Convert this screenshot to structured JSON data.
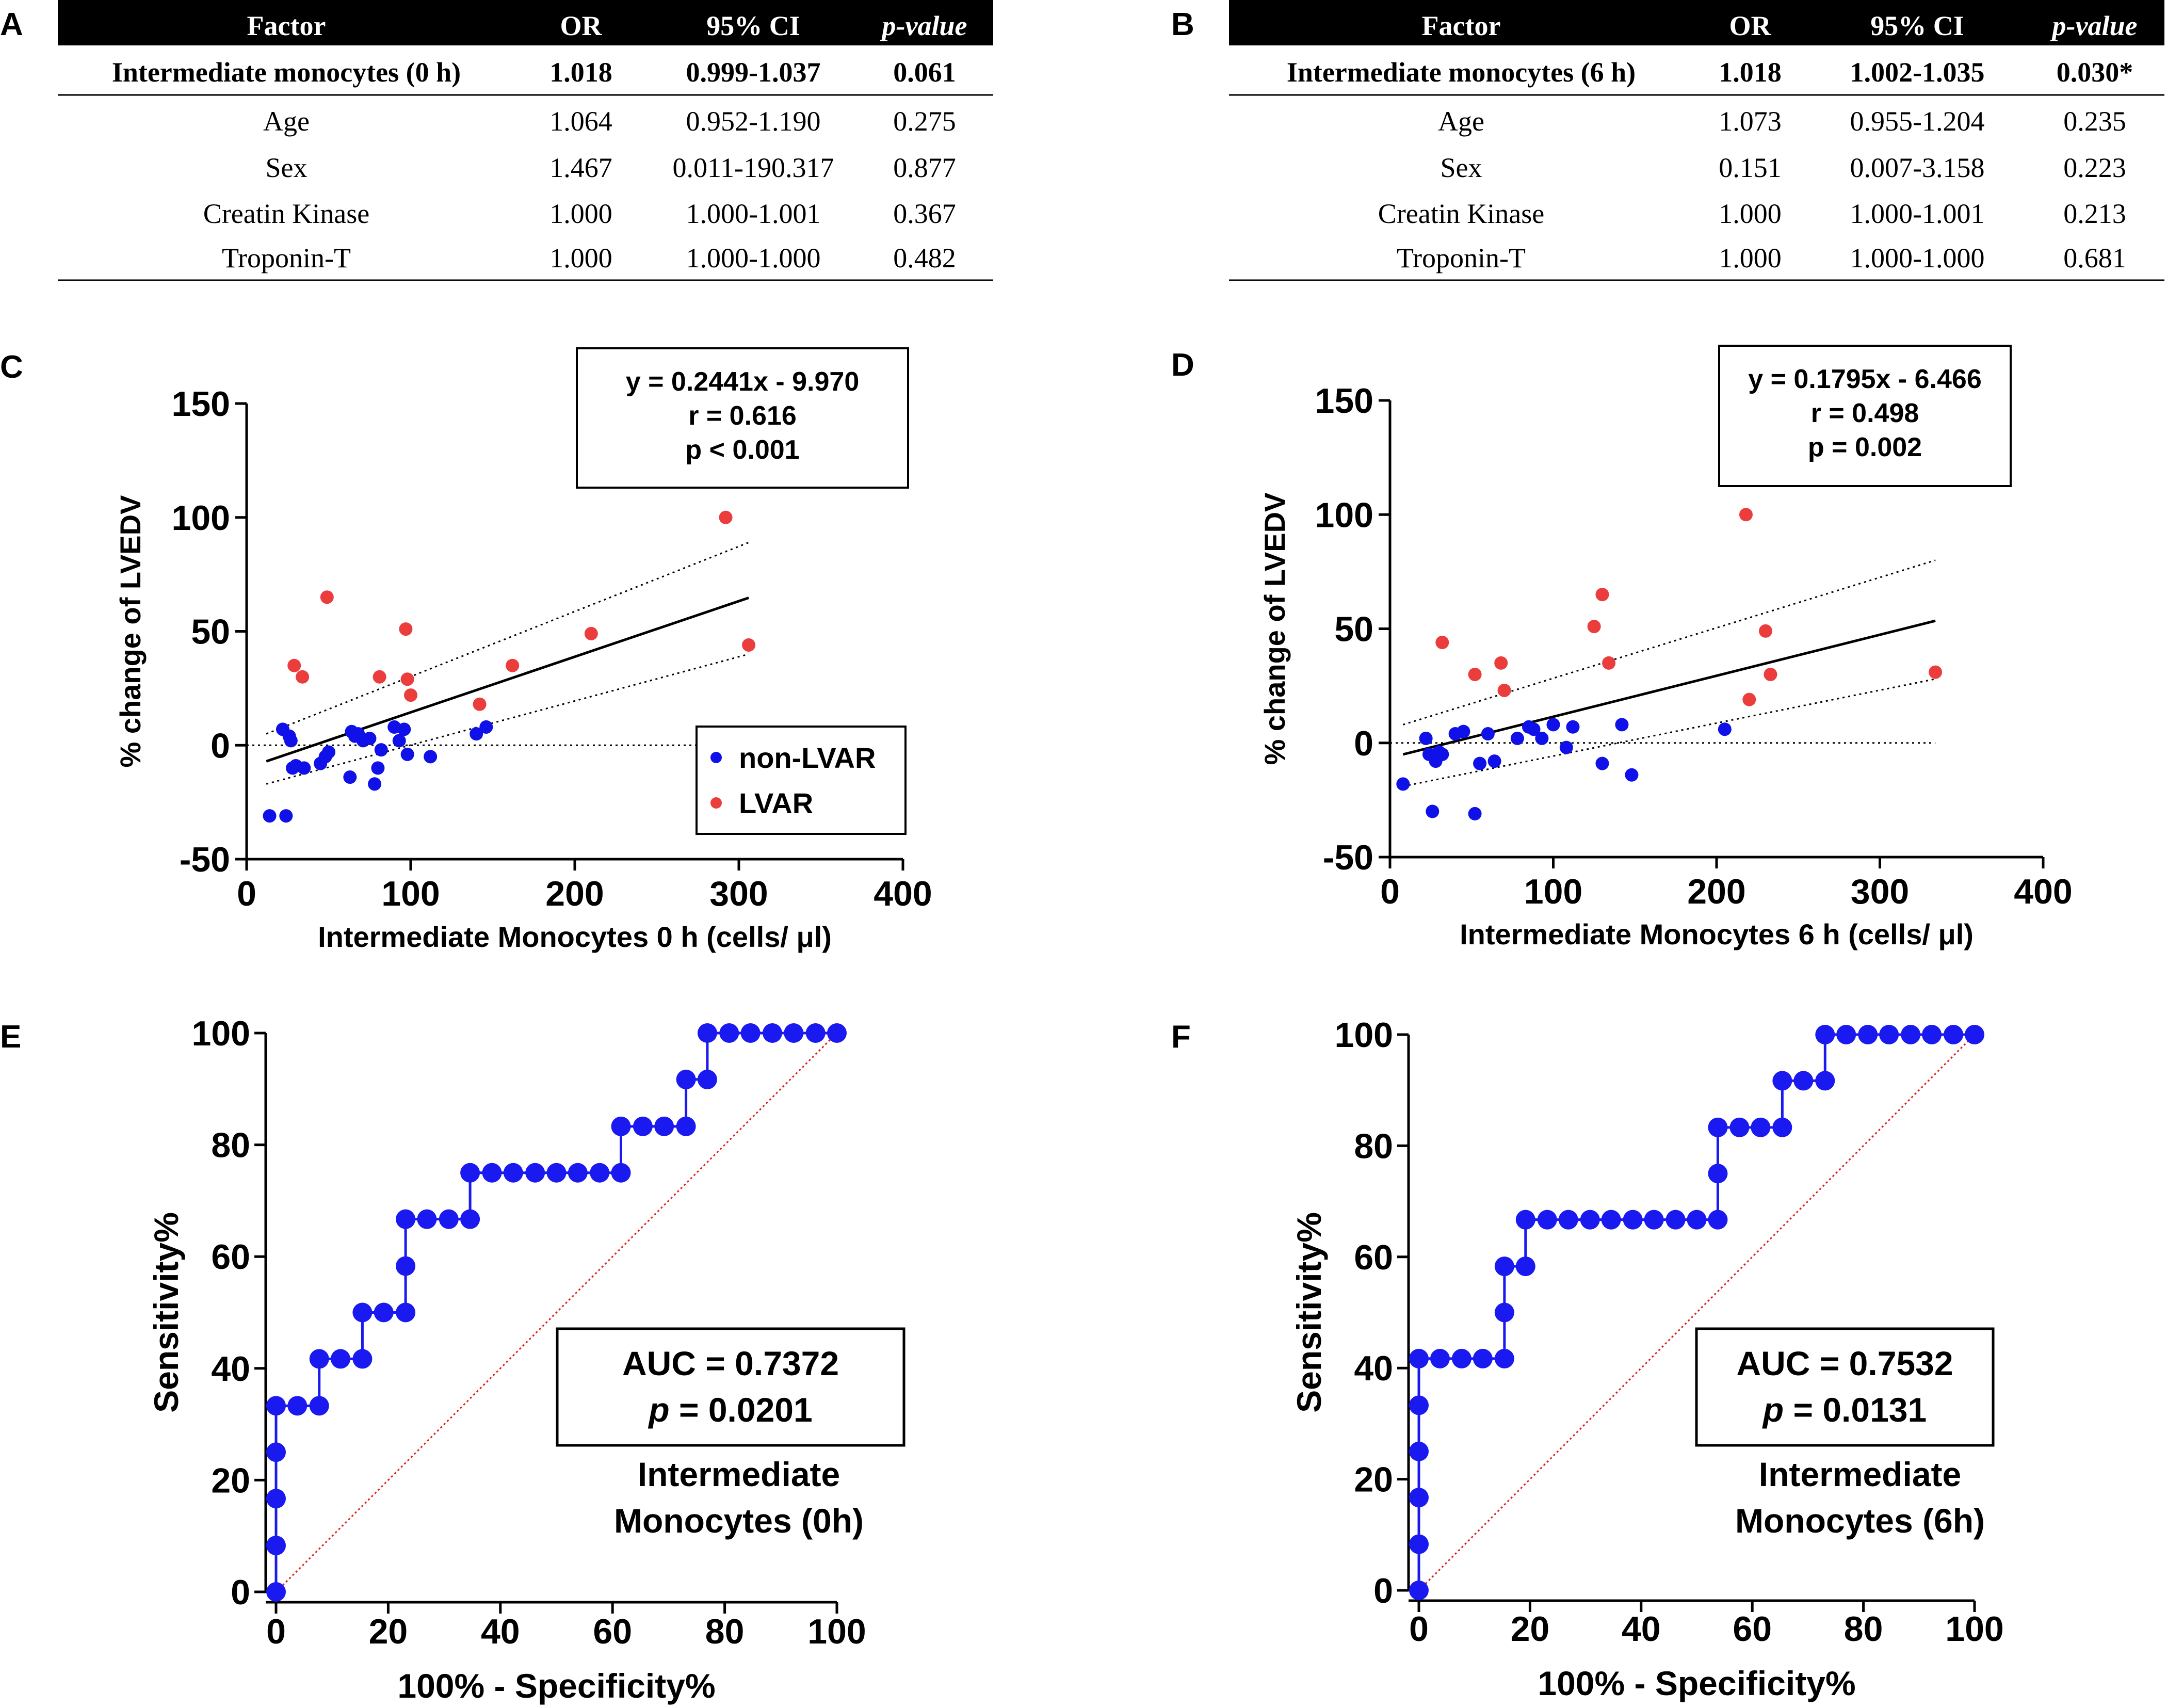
{
  "panels": {
    "A": "A",
    "B": "B",
    "C": "C",
    "D": "D",
    "E": "E",
    "F": "F"
  },
  "tables": [
    {
      "id": "A",
      "columns": [
        "Factor",
        "OR",
        "95% CI",
        "p-value"
      ],
      "rows": [
        [
          "Intermediate monocytes (0 h)",
          "1.018",
          "0.999-1.037",
          "0.061"
        ],
        [
          "Age",
          "1.064",
          "0.952-1.190",
          "0.275"
        ],
        [
          "Sex",
          "1.467",
          "0.011-190.317",
          "0.877"
        ],
        [
          "Creatin Kinase",
          "1.000",
          "1.000-1.001",
          "0.367"
        ],
        [
          "Troponin-T",
          "1.000",
          "1.000-1.000",
          "0.482"
        ]
      ]
    },
    {
      "id": "B",
      "columns": [
        "Factor",
        "OR",
        "95% CI",
        "p-value"
      ],
      "rows": [
        [
          "Intermediate monocytes (6 h)",
          "1.018",
          "1.002-1.035",
          "0.030*"
        ],
        [
          "Age",
          "1.073",
          "0.955-1.204",
          "0.235"
        ],
        [
          "Sex",
          "0.151",
          "0.007-3.158",
          "0.223"
        ],
        [
          "Creatin Kinase",
          "1.000",
          "1.000-1.001",
          "0.213"
        ],
        [
          "Troponin-T",
          "1.000",
          "1.000-1.000",
          "0.681"
        ]
      ]
    }
  ],
  "colors": {
    "non_lvar": "#1010e8",
    "lvar": "#ec3d3d",
    "roc": "#1a1af0",
    "diagonal": "#e02020",
    "table_header_bg": "#000000"
  },
  "chart_data": [
    {
      "id": "C",
      "type": "scatter",
      "xlabel": "Intermediate Monocytes 0 h (cells/ μl)",
      "ylabel": "% change of LVEDV",
      "xlim": [
        0,
        400
      ],
      "ylim": [
        -50,
        150
      ],
      "xticks": [
        "0",
        "100",
        "200",
        "300",
        "400"
      ],
      "yticks": [
        "150",
        "100",
        "50",
        "0",
        "-50"
      ],
      "stats": [
        "y = 0.2441x - 9.970",
        "r = 0.616",
        "p <  0.001"
      ],
      "legend": [
        "non-LVAR",
        "LVAR"
      ],
      "regression": {
        "slope": 0.2441,
        "intercept": -9.97,
        "x_range": [
          12,
          306
        ]
      },
      "ci_upper": [
        [
          12,
          5
        ],
        [
          306,
          89
        ]
      ],
      "ci_lower": [
        [
          12,
          -17
        ],
        [
          306,
          40
        ]
      ],
      "series": [
        {
          "name": "non-LVAR",
          "points": [
            [
              14,
              -31
            ],
            [
              22,
              7
            ],
            [
              24,
              -31
            ],
            [
              26,
              4
            ],
            [
              27,
              2
            ],
            [
              28,
              -10
            ],
            [
              30,
              -9
            ],
            [
              35,
              -10
            ],
            [
              45,
              -8
            ],
            [
              48,
              -5
            ],
            [
              50,
              -3
            ],
            [
              63,
              -14
            ],
            [
              64,
              6
            ],
            [
              66,
              4
            ],
            [
              68,
              5
            ],
            [
              71,
              2
            ],
            [
              75,
              3
            ],
            [
              78,
              -17
            ],
            [
              80,
              -10
            ],
            [
              82,
              -2
            ],
            [
              90,
              8
            ],
            [
              93,
              2
            ],
            [
              96,
              7
            ],
            [
              98,
              -4
            ],
            [
              112,
              -5
            ],
            [
              140,
              5
            ],
            [
              146,
              8
            ]
          ]
        },
        {
          "name": "LVAR",
          "points": [
            [
              29,
              35
            ],
            [
              34,
              30
            ],
            [
              49,
              65
            ],
            [
              81,
              30
            ],
            [
              97,
              51
            ],
            [
              98,
              29
            ],
            [
              100,
              22
            ],
            [
              142,
              18
            ],
            [
              162,
              35
            ],
            [
              210,
              49
            ],
            [
              292,
              100
            ],
            [
              306,
              44
            ]
          ]
        }
      ]
    },
    {
      "id": "D",
      "type": "scatter",
      "xlabel": "Intermediate Monocytes 6 h (cells/ μl)",
      "ylabel": "% change of LVEDV",
      "xlim": [
        0,
        400
      ],
      "ylim": [
        -50,
        150
      ],
      "xticks": [
        "0",
        "100",
        "200",
        "300",
        "400"
      ],
      "yticks": [
        "150",
        "100",
        "50",
        "0",
        "-50"
      ],
      "stats": [
        "y = 0.1795x - 6.466",
        "r = 0.498",
        "p =  0.002"
      ],
      "regression": {
        "slope": 0.1795,
        "intercept": -6.466,
        "x_range": [
          8,
          334
        ]
      },
      "ci_upper": [
        [
          8,
          8
        ],
        [
          334,
          80
        ]
      ],
      "ci_lower": [
        [
          8,
          -19
        ],
        [
          334,
          28
        ]
      ],
      "series": [
        {
          "name": "non-LVAR",
          "points": [
            [
              8,
              -18
            ],
            [
              22,
              2
            ],
            [
              24,
              -5
            ],
            [
              26,
              -30
            ],
            [
              28,
              -8
            ],
            [
              30,
              -4
            ],
            [
              32,
              -5
            ],
            [
              40,
              4
            ],
            [
              45,
              5
            ],
            [
              52,
              -31
            ],
            [
              55,
              -9
            ],
            [
              60,
              4
            ],
            [
              64,
              -8
            ],
            [
              78,
              2
            ],
            [
              85,
              7
            ],
            [
              88,
              6
            ],
            [
              93,
              2
            ],
            [
              100,
              8
            ],
            [
              108,
              -2
            ],
            [
              112,
              7
            ],
            [
              130,
              -9
            ],
            [
              142,
              8
            ],
            [
              148,
              -14
            ],
            [
              205,
              6
            ]
          ]
        },
        {
          "name": "LVAR",
          "points": [
            [
              32,
              44
            ],
            [
              52,
              30
            ],
            [
              68,
              35
            ],
            [
              70,
              23
            ],
            [
              125,
              51
            ],
            [
              130,
              65
            ],
            [
              134,
              35
            ],
            [
              218,
              100
            ],
            [
              220,
              19
            ],
            [
              230,
              49
            ],
            [
              233,
              30
            ],
            [
              334,
              31
            ]
          ]
        }
      ]
    },
    {
      "id": "E",
      "type": "line",
      "xlabel": "100% - Specificity%",
      "ylabel": "Sensitivity%",
      "xlim": [
        0,
        100
      ],
      "ylim": [
        0,
        100
      ],
      "xticks": [
        "0",
        "20",
        "40",
        "60",
        "80",
        "100"
      ],
      "yticks": [
        "100",
        "80",
        "60",
        "40",
        "20",
        "0"
      ],
      "auc": "AUC = 0.7372",
      "p_label": "p",
      "p_value": " = 0.0201",
      "caption": [
        "Intermediate",
        "Monocytes (0h)"
      ],
      "roc": [
        [
          0,
          0
        ],
        [
          0,
          8.3
        ],
        [
          0,
          16.7
        ],
        [
          0,
          25
        ],
        [
          0,
          33.3
        ],
        [
          3.8,
          33.3
        ],
        [
          7.7,
          33.3
        ],
        [
          7.7,
          41.7
        ],
        [
          11.5,
          41.7
        ],
        [
          15.4,
          41.7
        ],
        [
          15.4,
          50
        ],
        [
          19.2,
          50
        ],
        [
          23.1,
          50
        ],
        [
          23.1,
          58.3
        ],
        [
          23.1,
          66.7
        ],
        [
          26.9,
          66.7
        ],
        [
          30.8,
          66.7
        ],
        [
          34.6,
          66.7
        ],
        [
          34.6,
          75
        ],
        [
          38.5,
          75
        ],
        [
          42.3,
          75
        ],
        [
          46.2,
          75
        ],
        [
          50,
          75
        ],
        [
          53.8,
          75
        ],
        [
          57.7,
          75
        ],
        [
          61.5,
          75
        ],
        [
          61.5,
          83.3
        ],
        [
          65.4,
          83.3
        ],
        [
          69.2,
          83.3
        ],
        [
          73.1,
          83.3
        ],
        [
          73.1,
          91.7
        ],
        [
          76.9,
          91.7
        ],
        [
          76.9,
          100
        ],
        [
          80.8,
          100
        ],
        [
          84.6,
          100
        ],
        [
          88.5,
          100
        ],
        [
          92.3,
          100
        ],
        [
          96.2,
          100
        ],
        [
          100,
          100
        ]
      ]
    },
    {
      "id": "F",
      "type": "line",
      "xlabel": "100% - Specificity%",
      "ylabel": "Sensitivity%",
      "xlim": [
        0,
        100
      ],
      "ylim": [
        0,
        100
      ],
      "xticks": [
        "0",
        "20",
        "40",
        "60",
        "80",
        "100"
      ],
      "yticks": [
        "100",
        "80",
        "60",
        "40",
        "20",
        "0"
      ],
      "auc": "AUC = 0.7532",
      "p_label": "p",
      "p_value": " = 0.0131",
      "caption": [
        "Intermediate",
        "Monocytes (6h)"
      ],
      "roc": [
        [
          0,
          0
        ],
        [
          0,
          8.3
        ],
        [
          0,
          16.7
        ],
        [
          0,
          25
        ],
        [
          0,
          33.3
        ],
        [
          0,
          41.7
        ],
        [
          3.8,
          41.7
        ],
        [
          7.7,
          41.7
        ],
        [
          11.5,
          41.7
        ],
        [
          15.4,
          41.7
        ],
        [
          15.4,
          50
        ],
        [
          15.4,
          58.3
        ],
        [
          19.2,
          58.3
        ],
        [
          19.2,
          66.7
        ],
        [
          23.1,
          66.7
        ],
        [
          26.9,
          66.7
        ],
        [
          30.8,
          66.7
        ],
        [
          34.6,
          66.7
        ],
        [
          38.5,
          66.7
        ],
        [
          42.3,
          66.7
        ],
        [
          46.2,
          66.7
        ],
        [
          50,
          66.7
        ],
        [
          53.8,
          66.7
        ],
        [
          53.8,
          75
        ],
        [
          53.8,
          83.3
        ],
        [
          57.7,
          83.3
        ],
        [
          61.5,
          83.3
        ],
        [
          65.4,
          83.3
        ],
        [
          65.4,
          91.7
        ],
        [
          69.2,
          91.7
        ],
        [
          73.1,
          91.7
        ],
        [
          73.1,
          100
        ],
        [
          76.9,
          100
        ],
        [
          80.8,
          100
        ],
        [
          84.6,
          100
        ],
        [
          88.5,
          100
        ],
        [
          92.3,
          100
        ],
        [
          96.2,
          100
        ],
        [
          100,
          100
        ]
      ]
    }
  ]
}
